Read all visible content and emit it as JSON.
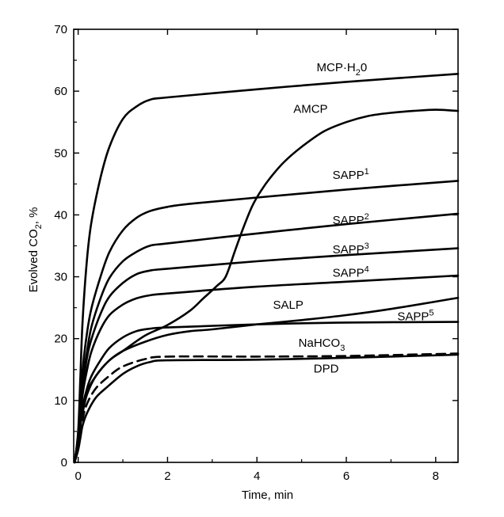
{
  "chart_data": {
    "type": "line",
    "title": "",
    "xlabel": "Time, min",
    "ylabel": "Evolved CO",
    "ylabel_sub": "2",
    "ylabel_suffix": ", %",
    "xlim": [
      -0.1,
      8.5
    ],
    "ylim": [
      0,
      70
    ],
    "xticks": [
      0,
      2,
      4,
      6,
      8
    ],
    "yticks": [
      0,
      10,
      20,
      30,
      40,
      50,
      60,
      70
    ],
    "grid": false,
    "legend": "inline labels",
    "series": [
      {
        "name": "MCP·H20",
        "label_main": "MCP·H",
        "label_sub": "2",
        "label_tail": "0",
        "style": "solid",
        "label_at": [
          5.9,
          63.2
        ],
        "points": [
          [
            -0.08,
            0
          ],
          [
            0,
            5
          ],
          [
            0.05,
            14
          ],
          [
            0.1,
            23
          ],
          [
            0.2,
            33
          ],
          [
            0.3,
            39
          ],
          [
            0.5,
            46
          ],
          [
            0.7,
            51
          ],
          [
            1.0,
            55.5
          ],
          [
            1.3,
            57.5
          ],
          [
            1.6,
            58.6
          ],
          [
            2.0,
            59
          ],
          [
            4,
            60.3
          ],
          [
            6,
            61.5
          ],
          [
            8.5,
            62.8
          ]
        ]
      },
      {
        "name": "AMCP",
        "label_main": "AMCP",
        "style": "solid",
        "label_at": [
          5.2,
          56.5
        ],
        "points": [
          [
            -0.08,
            0
          ],
          [
            0,
            4
          ],
          [
            0.1,
            8
          ],
          [
            0.2,
            11
          ],
          [
            0.4,
            14
          ],
          [
            0.7,
            16.5
          ],
          [
            1.0,
            18
          ],
          [
            1.5,
            20.5
          ],
          [
            2,
            22.2
          ],
          [
            2.5,
            24.5
          ],
          [
            2.8,
            26.5
          ],
          [
            3.1,
            28.5
          ],
          [
            3.3,
            30
          ],
          [
            3.5,
            34
          ],
          [
            3.7,
            38
          ],
          [
            3.9,
            41.5
          ],
          [
            4.1,
            44
          ],
          [
            4.3,
            46
          ],
          [
            4.6,
            48.5
          ],
          [
            5,
            51
          ],
          [
            5.5,
            53.5
          ],
          [
            6,
            55
          ],
          [
            6.5,
            56
          ],
          [
            7,
            56.5
          ],
          [
            7.5,
            56.8
          ],
          [
            8,
            57
          ],
          [
            8.5,
            56.8
          ]
        ]
      },
      {
        "name": "SAPP1",
        "label_main": "SAPP",
        "label_sup": "1",
        "style": "solid",
        "label_at": [
          6.1,
          45.8
        ],
        "points": [
          [
            -0.08,
            0
          ],
          [
            0,
            3
          ],
          [
            0.05,
            9
          ],
          [
            0.1,
            15
          ],
          [
            0.2,
            21
          ],
          [
            0.3,
            25
          ],
          [
            0.5,
            30
          ],
          [
            0.7,
            34
          ],
          [
            1.0,
            37.5
          ],
          [
            1.3,
            39.5
          ],
          [
            1.6,
            40.6
          ],
          [
            2.0,
            41.3
          ],
          [
            2.5,
            41.8
          ],
          [
            4,
            42.8
          ],
          [
            6,
            44.1
          ],
          [
            8.5,
            45.5
          ]
        ]
      },
      {
        "name": "SAPP2",
        "label_main": "SAPP",
        "label_sup": "2",
        "style": "solid",
        "label_at": [
          6.1,
          38.5
        ],
        "points": [
          [
            -0.08,
            0
          ],
          [
            0,
            3
          ],
          [
            0.05,
            8
          ],
          [
            0.1,
            13
          ],
          [
            0.2,
            18
          ],
          [
            0.3,
            22
          ],
          [
            0.5,
            26.5
          ],
          [
            0.7,
            29.8
          ],
          [
            1.0,
            32.5
          ],
          [
            1.3,
            34
          ],
          [
            1.6,
            35
          ],
          [
            2.0,
            35.4
          ],
          [
            4,
            37
          ],
          [
            6,
            38.5
          ],
          [
            8.5,
            40.2
          ]
        ]
      },
      {
        "name": "SAPP3",
        "label_main": "SAPP",
        "label_sup": "3",
        "style": "solid",
        "label_at": [
          6.1,
          33.8
        ],
        "points": [
          [
            -0.08,
            0
          ],
          [
            0,
            3
          ],
          [
            0.05,
            8
          ],
          [
            0.1,
            12
          ],
          [
            0.2,
            17
          ],
          [
            0.3,
            20
          ],
          [
            0.5,
            24
          ],
          [
            0.7,
            26.8
          ],
          [
            1.0,
            29
          ],
          [
            1.3,
            30.4
          ],
          [
            1.6,
            31
          ],
          [
            2.0,
            31.3
          ],
          [
            4,
            32.5
          ],
          [
            6,
            33.5
          ],
          [
            8.5,
            34.6
          ]
        ]
      },
      {
        "name": "SAPP4",
        "label_main": "SAPP",
        "label_sup": "4",
        "style": "solid",
        "label_at": [
          6.1,
          30.0
        ],
        "points": [
          [
            -0.08,
            0
          ],
          [
            0,
            3
          ],
          [
            0.05,
            7
          ],
          [
            0.1,
            11
          ],
          [
            0.2,
            15
          ],
          [
            0.3,
            18
          ],
          [
            0.5,
            21.5
          ],
          [
            0.7,
            23.8
          ],
          [
            1.0,
            25.5
          ],
          [
            1.3,
            26.5
          ],
          [
            1.6,
            27
          ],
          [
            2.0,
            27.3
          ],
          [
            4,
            28.4
          ],
          [
            6,
            29.2
          ],
          [
            8.5,
            30.2
          ]
        ]
      },
      {
        "name": "SALP",
        "label_main": "SALP",
        "style": "solid",
        "label_at": [
          4.7,
          24.8
        ],
        "points": [
          [
            -0.08,
            0
          ],
          [
            0,
            3
          ],
          [
            0.05,
            6
          ],
          [
            0.1,
            9
          ],
          [
            0.2,
            11.5
          ],
          [
            0.4,
            14
          ],
          [
            0.7,
            16.5
          ],
          [
            1.0,
            18
          ],
          [
            1.5,
            19.5
          ],
          [
            2.0,
            20.6
          ],
          [
            2.5,
            21.2
          ],
          [
            3,
            21.5
          ],
          [
            4,
            22.3
          ],
          [
            5,
            23
          ],
          [
            6,
            23.8
          ],
          [
            7,
            24.8
          ],
          [
            8.5,
            26.6
          ]
        ]
      },
      {
        "name": "SAPP5",
        "label_main": "SAPP",
        "label_sup": "5",
        "style": "solid",
        "label_at": [
          7.55,
          23.0
        ],
        "points": [
          [
            -0.08,
            0
          ],
          [
            0,
            3
          ],
          [
            0.05,
            6
          ],
          [
            0.1,
            9
          ],
          [
            0.2,
            12
          ],
          [
            0.3,
            14
          ],
          [
            0.5,
            16.5
          ],
          [
            0.7,
            18.5
          ],
          [
            1.0,
            20.2
          ],
          [
            1.3,
            21.2
          ],
          [
            1.6,
            21.6
          ],
          [
            2.0,
            21.8
          ],
          [
            4,
            22.3
          ],
          [
            6,
            22.6
          ],
          [
            8.5,
            22.7
          ]
        ]
      },
      {
        "name": "NaHCO3",
        "label_main": "NaHCO",
        "label_sub": "3",
        "style": "dashed",
        "label_at": [
          5.45,
          18.7
        ],
        "points": [
          [
            -0.08,
            0
          ],
          [
            0,
            3
          ],
          [
            0.1,
            7
          ],
          [
            0.2,
            9.5
          ],
          [
            0.4,
            12
          ],
          [
            0.7,
            14
          ],
          [
            1.0,
            15.5
          ],
          [
            1.5,
            16.7
          ],
          [
            2.0,
            17.1
          ],
          [
            4,
            17.1
          ],
          [
            6,
            17.2
          ],
          [
            8.5,
            17.6
          ]
        ]
      },
      {
        "name": "DPD",
        "label_main": "DPD",
        "style": "solid",
        "label_at": [
          5.55,
          14.5
        ],
        "points": [
          [
            -0.08,
            0
          ],
          [
            0,
            2
          ],
          [
            0.05,
            4
          ],
          [
            0.1,
            6
          ],
          [
            0.2,
            8
          ],
          [
            0.4,
            10.5
          ],
          [
            0.7,
            12.5
          ],
          [
            1.0,
            14.3
          ],
          [
            1.3,
            15.5
          ],
          [
            1.6,
            16.2
          ],
          [
            2.0,
            16.5
          ],
          [
            4,
            16.6
          ],
          [
            6,
            16.9
          ],
          [
            8.5,
            17.4
          ]
        ]
      }
    ]
  }
}
